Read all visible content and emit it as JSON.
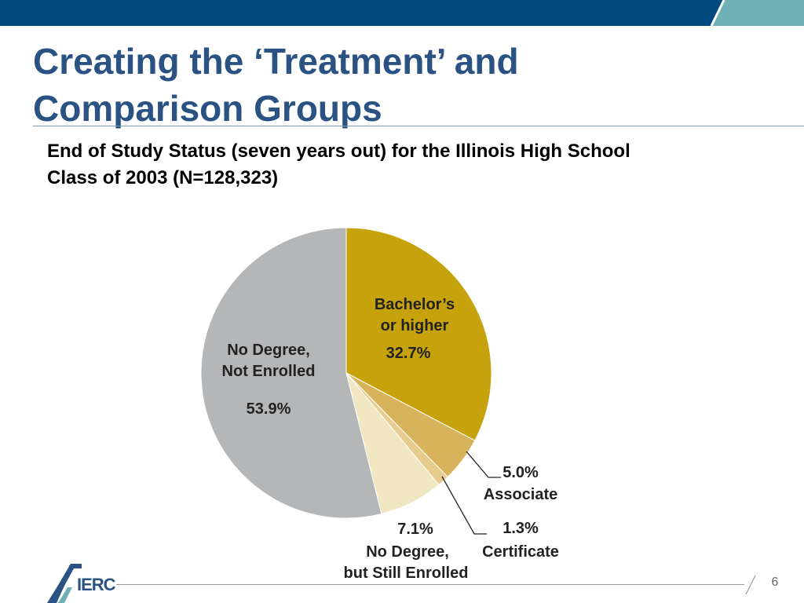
{
  "slide": {
    "title_lines": [
      "Creating the ‘Treatment’ and",
      "Comparison Groups"
    ],
    "subtitle_lines": [
      "End of Study Status (seven years out) for the Illinois High School",
      "Class of 2003 (N=128,323)"
    ],
    "page_number": "6",
    "logo_text": "IERC",
    "colors": {
      "bar_dark": "#004a80",
      "bar_light": "#6fb1b6",
      "title": "#2a5384"
    }
  },
  "chart_data": {
    "type": "pie",
    "title": "End of Study Status (seven years out) for the Illinois High School Class of 2003 (N=128,323)",
    "legend": "none",
    "slices": [
      {
        "label_lines": [
          "Bachelor’s",
          "or higher"
        ],
        "value": 32.7,
        "value_label": "32.7%",
        "color": "#c6a20d"
      },
      {
        "label_lines": [
          "Associate"
        ],
        "value": 5.0,
        "value_label": "5.0%",
        "color": "#d7b45b"
      },
      {
        "label_lines": [
          "Certificate"
        ],
        "value": 1.3,
        "value_label": "1.3%",
        "color": "#e6cd8e"
      },
      {
        "label_lines": [
          "No Degree,",
          "but Still Enrolled"
        ],
        "value": 7.1,
        "value_label": "7.1%",
        "color": "#f0e6c2"
      },
      {
        "label_lines": [
          "No Degree,",
          "Not Enrolled"
        ],
        "value": 53.9,
        "value_label": "53.9%",
        "color": "#b4b6b7"
      }
    ]
  }
}
